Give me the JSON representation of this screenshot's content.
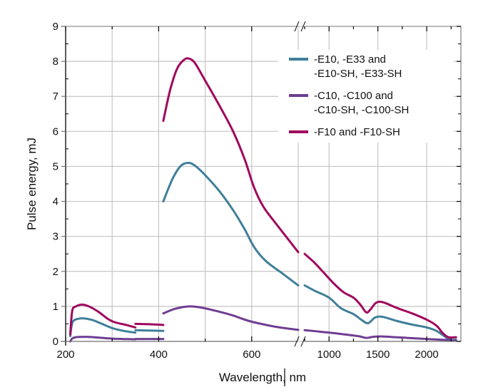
{
  "chart_data": {
    "type": "line",
    "title": "",
    "xlabel": "Wavelength, nm",
    "ylabel": "Pulse energy, mJ",
    "ylim": [
      0,
      9
    ],
    "yticks": [
      "0",
      "1",
      "2",
      "3",
      "4",
      "5",
      "6",
      "7",
      "8",
      "9"
    ],
    "x_axis_break": {
      "before": 700,
      "after": 750
    },
    "xlim_left": [
      200,
      700
    ],
    "xlim_right": [
      750,
      2350
    ],
    "xticks_left": [
      "200",
      "400",
      "600"
    ],
    "xticks_right": [
      "1000",
      "1500",
      "2000"
    ],
    "grid": true,
    "legend_position": "top-right",
    "series": [
      {
        "name": "-E10, -E33 and\n-E10-SH, -E33-SH",
        "legend_lines": [
          "-E10, -E33 and",
          "-E10-SH, -E33-SH"
        ],
        "color": "#3f7f99",
        "segments": [
          [
            [
              210,
              0.15
            ],
            [
              213,
              0.45
            ],
            [
              218,
              0.6
            ],
            [
              235,
              0.66
            ],
            [
              255,
              0.62
            ],
            [
              275,
              0.52
            ],
            [
              300,
              0.38
            ],
            [
              325,
              0.3
            ],
            [
              350,
              0.25
            ]
          ],
          [
            [
              350,
              0.32
            ],
            [
              380,
              0.31
            ],
            [
              410,
              0.3
            ]
          ],
          [
            [
              410,
              4.0
            ],
            [
              430,
              4.65
            ],
            [
              448,
              5.02
            ],
            [
              465,
              5.1
            ],
            [
              480,
              5.0
            ],
            [
              500,
              4.75
            ],
            [
              530,
              4.3
            ],
            [
              560,
              3.75
            ],
            [
              585,
              3.2
            ],
            [
              605,
              2.7
            ],
            [
              630,
              2.3
            ],
            [
              665,
              1.95
            ],
            [
              700,
              1.6
            ]
          ],
          [
            [
              750,
              1.6
            ],
            [
              850,
              1.45
            ],
            [
              1000,
              1.25
            ],
            [
              1120,
              0.95
            ],
            [
              1250,
              0.78
            ],
            [
              1330,
              0.62
            ],
            [
              1400,
              0.52
            ],
            [
              1470,
              0.68
            ],
            [
              1550,
              0.7
            ],
            [
              1700,
              0.58
            ],
            [
              1850,
              0.48
            ],
            [
              2000,
              0.4
            ],
            [
              2100,
              0.3
            ],
            [
              2180,
              0.15
            ],
            [
              2240,
              0.05
            ],
            [
              2300,
              0.05
            ]
          ]
        ]
      },
      {
        "name": "-C10, -C100 and\n-C10-SH, -C100-SH",
        "legend_lines": [
          "-C10, -C100 and",
          "-C10-SH, -C100-SH"
        ],
        "color": "#6f3d93",
        "segments": [
          [
            [
              210,
              0.0
            ],
            [
              214,
              0.08
            ],
            [
              222,
              0.12
            ],
            [
              245,
              0.13
            ],
            [
              270,
              0.11
            ],
            [
              300,
              0.08
            ],
            [
              350,
              0.06
            ]
          ],
          [
            [
              350,
              0.07
            ],
            [
              380,
              0.07
            ],
            [
              410,
              0.07
            ]
          ],
          [
            [
              410,
              0.8
            ],
            [
              435,
              0.93
            ],
            [
              465,
              1.0
            ],
            [
              490,
              0.97
            ],
            [
              530,
              0.85
            ],
            [
              560,
              0.74
            ],
            [
              590,
              0.6
            ],
            [
              620,
              0.5
            ],
            [
              660,
              0.4
            ],
            [
              700,
              0.33
            ]
          ],
          [
            [
              750,
              0.32
            ],
            [
              900,
              0.28
            ],
            [
              1100,
              0.22
            ],
            [
              1300,
              0.15
            ],
            [
              1380,
              0.1
            ],
            [
              1450,
              0.13
            ],
            [
              1550,
              0.14
            ],
            [
              1800,
              0.1
            ],
            [
              2000,
              0.07
            ],
            [
              2200,
              0.04
            ],
            [
              2300,
              0.02
            ]
          ]
        ]
      },
      {
        "name": "-F10 and -F10-SH",
        "legend_lines": [
          "-F10 and -F10-SH"
        ],
        "color": "#a0075e",
        "segments": [
          [
            [
              210,
              0.2
            ],
            [
              212,
              0.6
            ],
            [
              215,
              0.92
            ],
            [
              222,
              1.0
            ],
            [
              235,
              1.05
            ],
            [
              250,
              1.0
            ],
            [
              270,
              0.85
            ],
            [
              290,
              0.65
            ],
            [
              305,
              0.55
            ],
            [
              330,
              0.47
            ],
            [
              350,
              0.4
            ]
          ],
          [
            [
              350,
              0.5
            ],
            [
              380,
              0.49
            ],
            [
              410,
              0.47
            ]
          ],
          [
            [
              410,
              6.3
            ],
            [
              425,
              7.2
            ],
            [
              440,
              7.8
            ],
            [
              455,
              8.05
            ],
            [
              465,
              8.08
            ],
            [
              478,
              7.95
            ],
            [
              500,
              7.45
            ],
            [
              530,
              6.75
            ],
            [
              560,
              6.0
            ],
            [
              585,
              5.2
            ],
            [
              605,
              4.4
            ],
            [
              625,
              3.85
            ],
            [
              650,
              3.4
            ],
            [
              700,
              2.55
            ]
          ],
          [
            [
              750,
              2.5
            ],
            [
              850,
              2.25
            ],
            [
              950,
              1.95
            ],
            [
              1050,
              1.65
            ],
            [
              1150,
              1.4
            ],
            [
              1250,
              1.25
            ],
            [
              1320,
              1.05
            ],
            [
              1380,
              0.83
            ],
            [
              1420,
              0.9
            ],
            [
              1480,
              1.1
            ],
            [
              1550,
              1.12
            ],
            [
              1700,
              0.95
            ],
            [
              1850,
              0.8
            ],
            [
              2000,
              0.62
            ],
            [
              2100,
              0.45
            ],
            [
              2160,
              0.25
            ],
            [
              2220,
              0.12
            ],
            [
              2300,
              0.12
            ]
          ]
        ]
      }
    ]
  }
}
